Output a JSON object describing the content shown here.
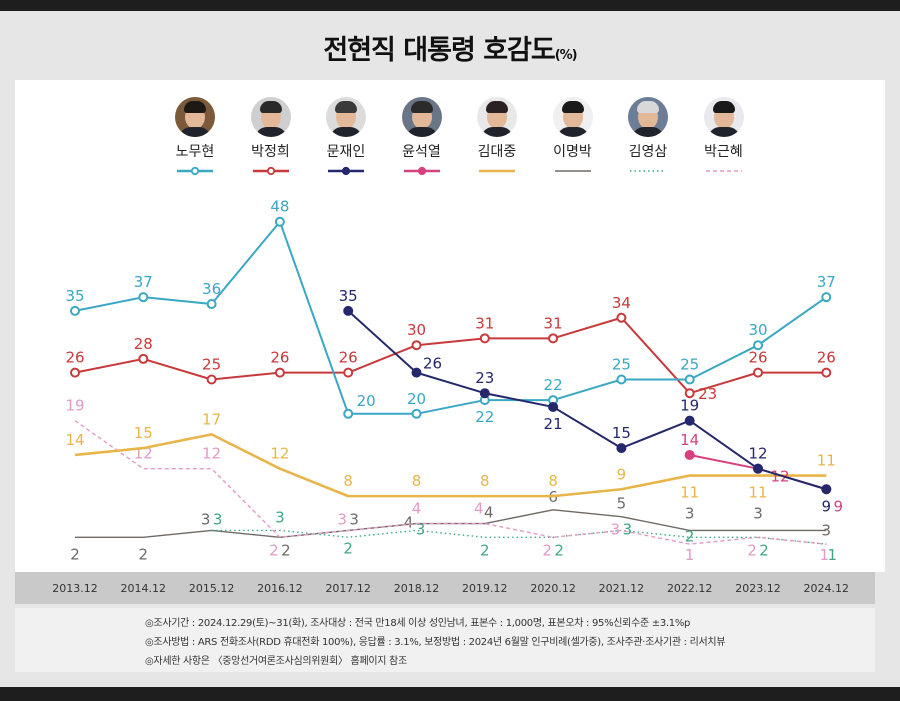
{
  "title": "전현직 대통령 호감도",
  "title_unit": "(%)",
  "legend": [
    {
      "name": "노무현",
      "color": "#3aa7c4",
      "style": "solid-hollow-marker",
      "icon": "portrait-photo"
    },
    {
      "name": "박정희",
      "color": "#c8393b",
      "style": "solid-hollow-marker",
      "icon": "portrait-photo"
    },
    {
      "name": "문재인",
      "color": "#25286b",
      "style": "solid-filled-marker",
      "icon": "portrait-photo"
    },
    {
      "name": "윤석열",
      "color": "#d6417f",
      "style": "solid-filled-marker",
      "icon": "portrait-photo"
    },
    {
      "name": "김대중",
      "color": "#e8b54a",
      "style": "solid",
      "icon": "portrait-photo"
    },
    {
      "name": "이명박",
      "color": "#6e6a66",
      "style": "solid-thin",
      "icon": "portrait-photo"
    },
    {
      "name": "김영삼",
      "color": "#3fa882",
      "style": "dotted",
      "icon": "portrait-photo"
    },
    {
      "name": "박근혜",
      "color": "#e39ac4",
      "style": "dashed",
      "icon": "portrait-photo"
    }
  ],
  "chart_data": {
    "type": "line",
    "title": "전현직 대통령 호감도(%)",
    "xlabel": "",
    "ylabel": "",
    "categories": [
      "2013.12",
      "2014.12",
      "2015.12",
      "2016.12",
      "2017.12",
      "2018.12",
      "2019.12",
      "2020.12",
      "2021.12",
      "2022.12",
      "2023.12",
      "2024.12"
    ],
    "ylim": [
      0,
      50
    ],
    "grid": false,
    "legend_position": "top",
    "series": [
      {
        "name": "노무현",
        "values": [
          35,
          37,
          36,
          48,
          20,
          20,
          22,
          22,
          25,
          25,
          30,
          37
        ]
      },
      {
        "name": "박정희",
        "values": [
          26,
          28,
          25,
          26,
          26,
          30,
          31,
          31,
          34,
          23,
          26,
          26
        ]
      },
      {
        "name": "문재인",
        "values": [
          null,
          null,
          null,
          null,
          35,
          26,
          23,
          21,
          15,
          19,
          12,
          9
        ]
      },
      {
        "name": "윤석열",
        "values": [
          null,
          null,
          null,
          null,
          null,
          null,
          null,
          null,
          null,
          14,
          12,
          9
        ]
      },
      {
        "name": "김대중",
        "values": [
          14,
          15,
          17,
          12,
          8,
          8,
          8,
          8,
          9,
          11,
          11,
          11
        ]
      },
      {
        "name": "이명박",
        "values": [
          2,
          2,
          3,
          2,
          3,
          4,
          4,
          6,
          5,
          3,
          3,
          3
        ]
      },
      {
        "name": "김영삼",
        "values": [
          null,
          null,
          3,
          3,
          2,
          3,
          2,
          2,
          3,
          2,
          2,
          1
        ]
      },
      {
        "name": "박근혜",
        "values": [
          19,
          12,
          12,
          2,
          3,
          4,
          4,
          2,
          3,
          1,
          2,
          1
        ]
      }
    ]
  },
  "notes": [
    "◎조사기간 : 2024.12.29(토)~31(화), 조사대상 : 전국 만18세 이상 성인남녀, 표본수 : 1,000명, 표본오차 : 95%신뢰수준 ±3.1%p",
    "◎조사방법 : ARS 전화조사(RDD 휴대전화 100%), 응답률 : 3.1%, 보정방법 : 2024년 6월말 인구비례(셀가중), 조사주관·조사기관 : 리서치뷰",
    "◎자세한 사항은 〈중앙선거여론조사심의위원회〉 홈페이지 참조"
  ]
}
